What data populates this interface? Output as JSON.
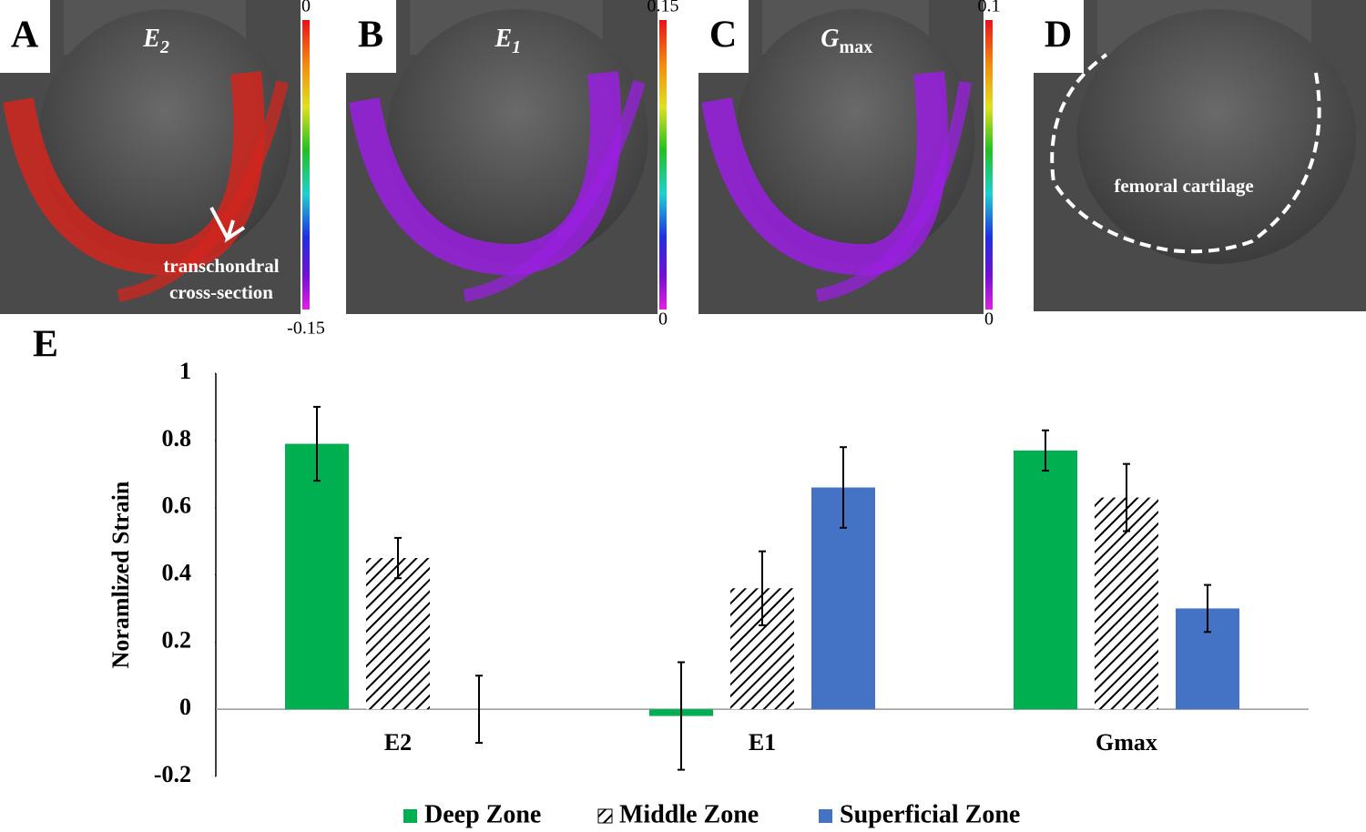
{
  "panels": [
    {
      "letter": "A",
      "label": {
        "base": "E",
        "sub": "2"
      },
      "colorbar": {
        "max": 0,
        "min": -0.15
      },
      "annotation": [
        "transchondral",
        "cross-section"
      ]
    },
    {
      "letter": "B",
      "label": {
        "base": "E",
        "sub": "1"
      },
      "colorbar": {
        "max": 0.15,
        "min": 0
      }
    },
    {
      "letter": "C",
      "label": {
        "base": "G",
        "sub": "max"
      },
      "colorbar": {
        "max": 0.1,
        "min": 0
      }
    },
    {
      "letter": "D",
      "annotation": [
        "femoral cartilage"
      ]
    }
  ],
  "chart_data": {
    "type": "bar",
    "panel_letter": "E",
    "y_label": "Noramlized Strain",
    "categories": [
      "E2",
      "E1",
      "Gmax"
    ],
    "series": [
      {
        "name": "Deep Zone",
        "color": "#00b050",
        "values": [
          0.79,
          -0.02,
          0.77
        ],
        "errors": [
          0.11,
          0.16,
          0.06
        ]
      },
      {
        "name": "Middle Zone",
        "color": "#000000",
        "hatch": true,
        "values": [
          0.45,
          0.36,
          0.63
        ],
        "errors": [
          0.06,
          0.11,
          0.1
        ]
      },
      {
        "name": "Superficial Zone",
        "color": "#4472c4",
        "values": [
          0,
          0.66,
          0.3
        ],
        "errors": [
          0.1,
          0.12,
          0.07
        ]
      }
    ],
    "ylim": [
      -0.2,
      1
    ],
    "yticks": [
      -0.2,
      0,
      0.2,
      0.4,
      0.6,
      0.8,
      1
    ],
    "grid": false
  }
}
